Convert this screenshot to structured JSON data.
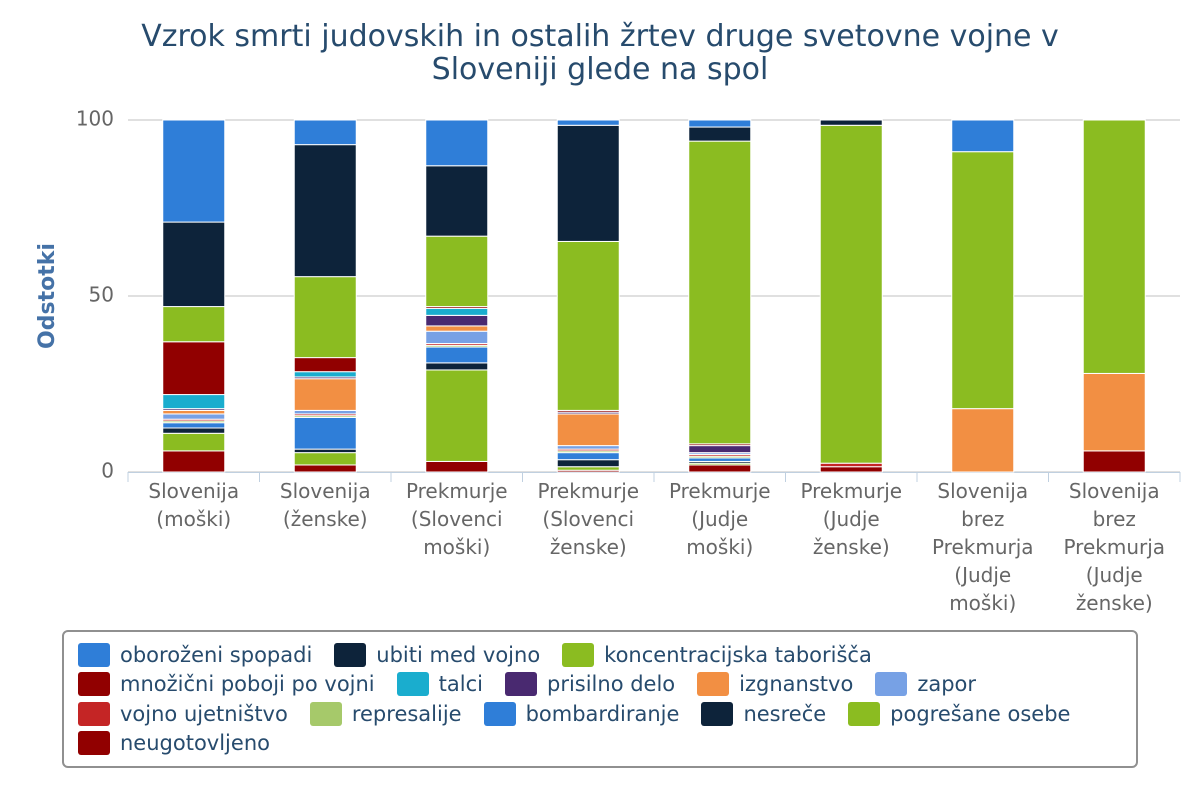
{
  "chart_data": {
    "type": "stacked_bar",
    "title": "Vzrok smrti judovskih in ostalih žrtev druge svetovne vojne v Sloveniji glede na spol",
    "y_label": "Odstotki",
    "categories": [
      "Slovenija (moški)",
      "Slovenija (ženske)",
      "Prekmurje (Slovenci moški)",
      "Prekmurje (Slovenci ženske)",
      "Prekmurje (Judje moški)",
      "Prekmurje (Judje ženske)",
      "Slovenija brez Prekmurja (Judje moški)",
      "Slovenija brez Prekmurja (Judje ženske)"
    ],
    "ylim": [
      0,
      100
    ],
    "yticks": [
      0,
      50,
      100
    ],
    "grid": true,
    "series": [
      {
        "name": "oboroženi spopadi",
        "color": "#2f7ed8",
        "values": [
          29,
          7,
          13,
          1.5,
          2,
          0,
          9,
          0
        ]
      },
      {
        "name": "ubiti med vojno",
        "color": "#0d233a",
        "values": [
          24,
          37.5,
          20,
          33,
          4,
          1.5,
          0,
          0
        ]
      },
      {
        "name": "koncentracijska taborišča",
        "color": "#8bbc21",
        "values": [
          10,
          23,
          20,
          48,
          86,
          96,
          73,
          72
        ]
      },
      {
        "name": "množični poboji po vojni",
        "color": "#910000",
        "values": [
          15,
          4,
          0.5,
          0.5,
          0.5,
          0,
          0,
          0
        ]
      },
      {
        "name": "talci",
        "color": "#1aadce",
        "values": [
          4,
          1.5,
          2,
          0,
          0,
          0,
          0,
          0
        ]
      },
      {
        "name": "prisilno delo",
        "color": "#492970",
        "values": [
          0.5,
          0.5,
          3,
          0.5,
          2,
          0,
          0,
          0
        ]
      },
      {
        "name": "izgnanstvo",
        "color": "#f28f43",
        "values": [
          1,
          9,
          1.5,
          9,
          0,
          0,
          18,
          22
        ]
      },
      {
        "name": "zapor",
        "color": "#77a1e5",
        "values": [
          1.5,
          1,
          3.5,
          1,
          0.5,
          0,
          0,
          0
        ]
      },
      {
        "name": "vojno ujetništvo",
        "color": "#c42525",
        "values": [
          0.5,
          0.5,
          0.5,
          0.5,
          0.5,
          1,
          0,
          0
        ]
      },
      {
        "name": "represalije",
        "color": "#a6c96a",
        "values": [
          0.5,
          0.5,
          0.5,
          0.5,
          0.5,
          0,
          0,
          0
        ]
      },
      {
        "name": "bombardiranje",
        "color": "#2f7ed8",
        "values": [
          1.5,
          9,
          4.5,
          2,
          1,
          0,
          0,
          0
        ]
      },
      {
        "name": "nesreče",
        "color": "#0d233a",
        "values": [
          1.5,
          1,
          2,
          2,
          0.5,
          0,
          0,
          0
        ]
      },
      {
        "name": "pogrešane osebe",
        "color": "#8bbc21",
        "values": [
          5,
          3.5,
          26,
          1,
          0.5,
          0,
          0,
          0
        ]
      },
      {
        "name": "neugotovljeno",
        "color": "#910000",
        "values": [
          6,
          2,
          3,
          0.5,
          2,
          1.5,
          0,
          6
        ]
      }
    ]
  }
}
